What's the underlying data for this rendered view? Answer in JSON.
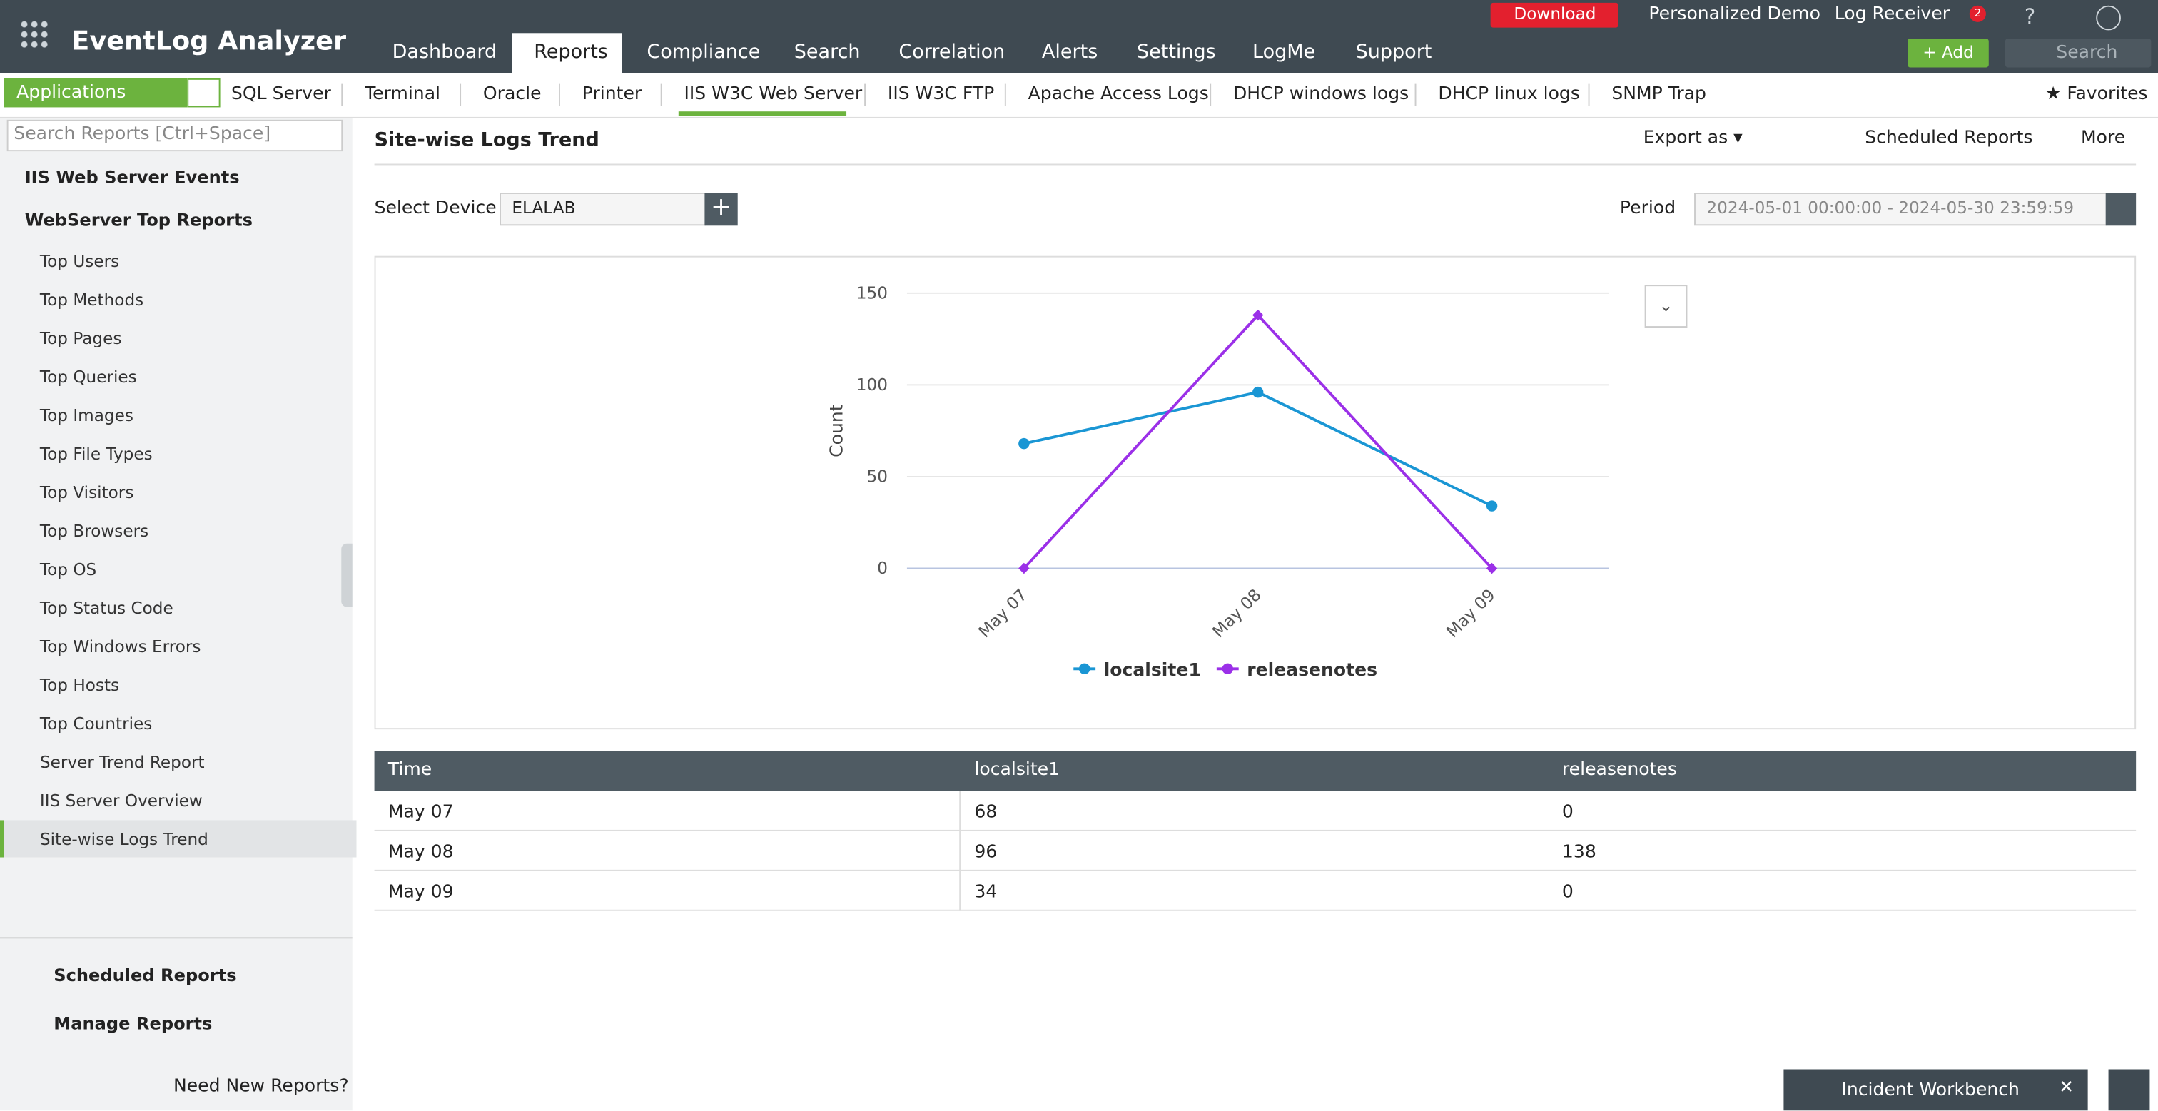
{
  "header": {
    "logo": "EventLog Analyzer",
    "nav": [
      "Dashboard",
      "Reports",
      "Compliance",
      "Search",
      "Correlation",
      "Alerts",
      "Settings",
      "LogMe",
      "Support"
    ],
    "active_nav": 1,
    "download": "Download",
    "links": [
      "Personalized Demo",
      "Log Receiver"
    ],
    "notifications": 2,
    "help": "?",
    "add": "Add",
    "search": "Search"
  },
  "tabs": {
    "menu": "Applications",
    "items": [
      "SQL Server",
      "Terminal",
      "Oracle",
      "Printer",
      "IIS W3C Web Server",
      "IIS W3C FTP",
      "Apache Access Logs",
      "DHCP windows logs",
      "DHCP linux logs",
      "SNMP Trap"
    ],
    "active_tab": 4,
    "favorites": "Favorites"
  },
  "sidebar": {
    "search": "Search Reports [Ctrl+Space]",
    "groups": [
      "IIS Web Server Events",
      "WebServer Top Reports"
    ],
    "items": [
      "Top Users",
      "Top Methods",
      "Top Pages",
      "Top Queries",
      "Top Images",
      "Top File Types",
      "Top Visitors",
      "Top Browsers",
      "Top OS",
      "Top Status Code",
      "Top Windows Errors",
      "Top Hosts",
      "Top Countries",
      "Server Trend Report",
      "IIS Server Overview",
      "Site-wise Logs Trend"
    ],
    "active_item": 15,
    "footer": [
      "Scheduled Reports",
      "Manage Reports"
    ],
    "need": "Need New Reports?"
  },
  "report": {
    "title": "Site-wise Logs Trend",
    "export": "Export as",
    "scheduled": "Scheduled Reports",
    "more": "More",
    "device_label": "Select Device",
    "device": "ELALAB",
    "period_label": "Period",
    "period": "2024-05-01 00:00:00 - 2024-05-30 23:59:59"
  },
  "chart_data": {
    "type": "line",
    "y_label": "Count",
    "categories": [
      "May 07",
      "May 08",
      "May 09"
    ],
    "series": [
      {
        "name": "localsite1",
        "color": "#1a96d4",
        "values": [
          68,
          96,
          34
        ]
      },
      {
        "name": "releasenotes",
        "color": "#9b30e8",
        "values": [
          0,
          138,
          0
        ]
      }
    ],
    "ylim": [
      0,
      150
    ],
    "yticks": [
      0,
      50,
      100,
      150
    ],
    "grid": true
  },
  "table": {
    "columns": [
      "Time",
      "localsite1",
      "releasenotes"
    ],
    "rows": [
      [
        "May 07",
        68,
        0
      ],
      [
        "May 08",
        96,
        138
      ],
      [
        "May 09",
        34,
        0
      ]
    ]
  },
  "footer": {
    "workbench": "Incident Workbench"
  }
}
